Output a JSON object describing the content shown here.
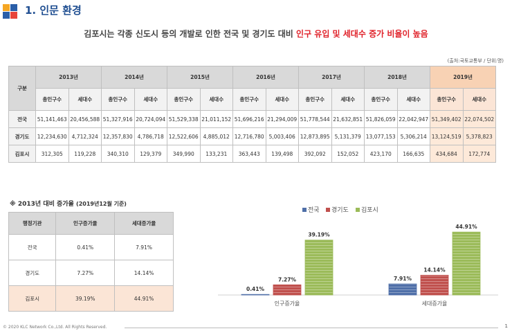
{
  "header": {
    "title": "1. 인문 환경"
  },
  "subtitle": {
    "prefix": "김포시는 각종 신도시 등의 개발로 인한 전국 및 경기도 대비 ",
    "highlight": "인구 유입 및 세대수 증가 비율이 높음"
  },
  "source": "(출처:국토교통부 / 단위:명)",
  "main_table": {
    "corner": "구분",
    "years": [
      "2013년",
      "2014년",
      "2015년",
      "2016년",
      "2017년",
      "2018년",
      "2019년"
    ],
    "sub_headers": [
      "총인구수",
      "세대수"
    ],
    "rows": [
      {
        "label": "전국",
        "values": [
          "51,141,463",
          "20,456,588",
          "51,327,916",
          "20,724,094",
          "51,529,338",
          "21,011,152",
          "51,696,216",
          "21,294,009",
          "51,778,544",
          "21,632,851",
          "51,826,059",
          "22,042,947",
          "51,349,402",
          "22,074,502"
        ]
      },
      {
        "label": "경기도",
        "values": [
          "12,234,630",
          "4,712,324",
          "12,357,830",
          "4,786,718",
          "12,522,606",
          "4,885,012",
          "12,716,780",
          "5,003,406",
          "12,873,895",
          "5,131,379",
          "13,077,153",
          "5,306,214",
          "13,124,519",
          "5,378,823"
        ]
      },
      {
        "label": "김포시",
        "values": [
          "312,305",
          "119,228",
          "340,310",
          "129,379",
          "349,990",
          "133,231",
          "363,443",
          "139,498",
          "392,092",
          "152,052",
          "423,170",
          "166,635",
          "434,684",
          "172,774"
        ]
      }
    ]
  },
  "note": {
    "main": "※ 2013년 대비 증가율",
    "sub": "(2019년12월 기준)"
  },
  "rate_table": {
    "headers": [
      "행정기관",
      "인구증가율",
      "세대증가율"
    ],
    "rows": [
      {
        "label": "전국",
        "pop": "0.41%",
        "hh": "7.91%"
      },
      {
        "label": "경기도",
        "pop": "7.27%",
        "hh": "14.14%"
      },
      {
        "label": "김포시",
        "pop": "39.19%",
        "hh": "44.91%"
      }
    ]
  },
  "chart_data": {
    "type": "bar",
    "categories": [
      "인구증가율",
      "세대증가율"
    ],
    "series": [
      {
        "name": "전국",
        "values": [
          0.41,
          7.91
        ],
        "labels": [
          "0.41%",
          "7.91%"
        ],
        "color": "#4f6fa8"
      },
      {
        "name": "경기도",
        "values": [
          7.27,
          14.14
        ],
        "labels": [
          "7.27%",
          "14.14%"
        ],
        "color": "#c0504d"
      },
      {
        "name": "김포시",
        "values": [
          39.19,
          44.91
        ],
        "labels": [
          "39.19%",
          "44.91%"
        ],
        "color": "#9bbb59"
      }
    ],
    "ylim": [
      0,
      50
    ],
    "legend": "top"
  },
  "footer": {
    "copyright": "© 2020 KLC Network Co.,Ltd. All Rights Reserved.",
    "page": "1"
  }
}
